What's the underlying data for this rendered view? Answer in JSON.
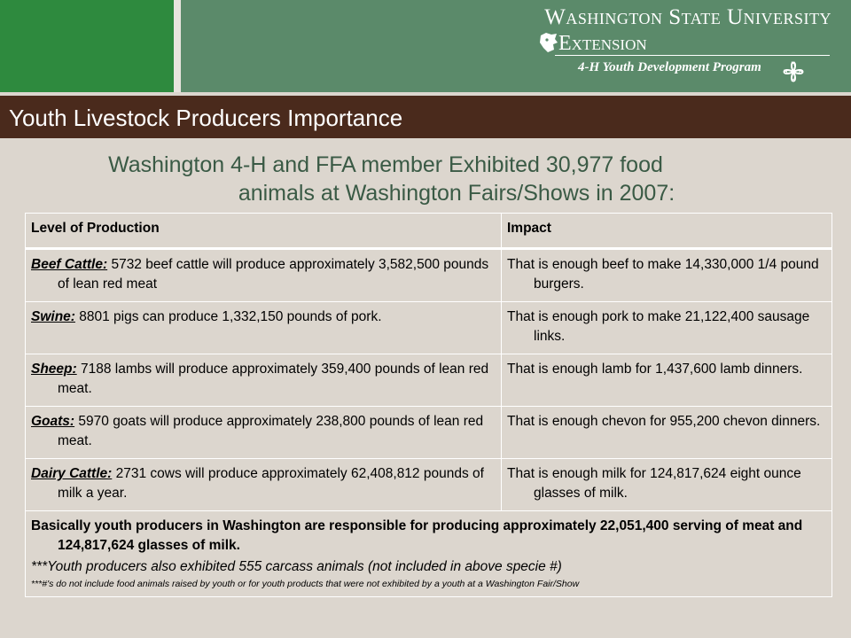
{
  "header": {
    "university": "Washington State University",
    "extension": "Extension",
    "program": "4-H Youth Development Program"
  },
  "title": "Youth Livestock Producers Importance",
  "subtitle": {
    "line1": "Washington 4-H and FFA member Exhibited 30,977 food",
    "line2": "animals at Washington Fairs/Shows in 2007:"
  },
  "table": {
    "headers": [
      "Level of Production",
      "Impact"
    ],
    "rows": [
      {
        "term": "Beef Cattle:",
        "production": " 5732 beef cattle will produce approximately 3,582,500 pounds of lean red meat",
        "impact": "That is enough beef to make 14,330,000 1/4 pound burgers."
      },
      {
        "term": "Swine:",
        "production": " 8801 pigs can produce 1,332,150 pounds of pork.",
        "impact": "That is enough pork to make 21,122,400 sausage links."
      },
      {
        "term": "Sheep:",
        "production": " 7188 lambs will produce approximately 359,400 pounds of lean red meat.",
        "impact": "That is enough lamb for 1,437,600 lamb dinners."
      },
      {
        "term": "Goats:",
        "production": " 5970 goats will produce approximately 238,800 pounds of lean red meat.",
        "impact": "That is enough chevon for 955,200 chevon dinners."
      },
      {
        "term": "Dairy Cattle:",
        "production": " 2731 cows will produce approximately 62,408,812 pounds of milk a year.",
        "impact": "That is enough milk for 124,817,624 eight ounce glasses of milk."
      }
    ],
    "summary": "Basically youth producers in Washington are responsible for producing approximately 22,051,400 serving of meat and 124,817,624 glasses of milk.",
    "note1": "***Youth producers also exhibited 555 carcass animals (not included in above specie #)",
    "note2": "***#'s do not include food animals raised by youth or for youth products that were not exhibited by a youth at a Washington Fair/Show"
  },
  "colors": {
    "green_left": "#2e8a3e",
    "green_right": "#5b8a6a",
    "title_bar": "#4a2a1c",
    "subtitle_text": "#3a5a45",
    "background": "#dcd6ce"
  }
}
